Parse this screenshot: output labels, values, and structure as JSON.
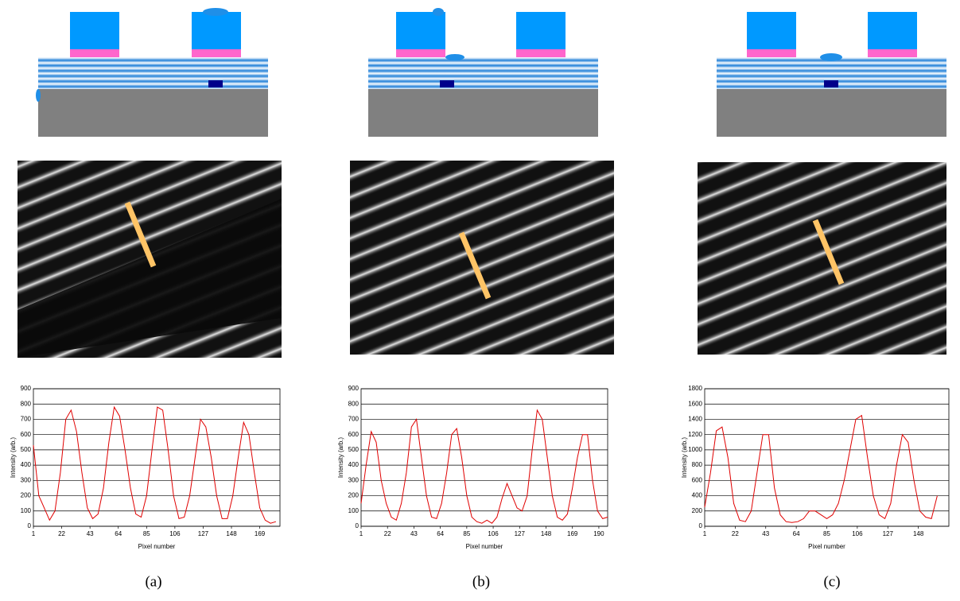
{
  "chart_data": [
    {
      "type": "line",
      "caption": "(a)",
      "xlabel": "Pixel number",
      "ylabel": "Intensity (arb.)",
      "xlim": [
        1,
        184
      ],
      "ylim": [
        0,
        900
      ],
      "xticks": [
        1,
        22,
        43,
        64,
        85,
        106,
        127,
        148,
        169
      ],
      "yticks": [
        0,
        100,
        200,
        300,
        400,
        500,
        600,
        700,
        800,
        900
      ],
      "grid": true,
      "series": [
        {
          "color": "#e00000",
          "x": [
            1,
            5,
            9,
            13,
            17,
            21,
            25,
            29,
            33,
            37,
            41,
            45,
            49,
            53,
            57,
            61,
            65,
            69,
            73,
            77,
            81,
            85,
            89,
            93,
            97,
            101,
            105,
            109,
            113,
            117,
            121,
            125,
            129,
            133,
            137,
            141,
            145,
            149,
            153,
            157,
            161,
            165,
            169,
            173,
            177,
            181
          ],
          "values": [
            530,
            200,
            120,
            40,
            100,
            350,
            700,
            760,
            620,
            350,
            120,
            50,
            80,
            250,
            550,
            780,
            720,
            500,
            250,
            80,
            60,
            200,
            500,
            780,
            760,
            500,
            200,
            50,
            60,
            200,
            450,
            700,
            650,
            450,
            200,
            50,
            50,
            200,
            450,
            680,
            600,
            350,
            120,
            40,
            20,
            30
          ]
        }
      ]
    },
    {
      "type": "line",
      "caption": "(b)",
      "xlabel": "Pixel number",
      "ylabel": "Intensity (arb.)",
      "xlim": [
        1,
        197
      ],
      "ylim": [
        0,
        900
      ],
      "xticks": [
        1,
        22,
        43,
        64,
        85,
        106,
        127,
        148,
        169,
        190
      ],
      "yticks": [
        0,
        100,
        200,
        300,
        400,
        500,
        600,
        700,
        800,
        900
      ],
      "grid": true,
      "series": [
        {
          "color": "#e00000",
          "x": [
            1,
            5,
            9,
            13,
            17,
            21,
            25,
            29,
            33,
            37,
            41,
            45,
            49,
            53,
            57,
            61,
            65,
            69,
            73,
            77,
            81,
            85,
            89,
            93,
            97,
            101,
            105,
            109,
            113,
            117,
            121,
            125,
            129,
            133,
            137,
            141,
            145,
            149,
            153,
            157,
            161,
            165,
            169,
            173,
            177,
            181,
            185,
            189,
            193,
            197
          ],
          "values": [
            150,
            400,
            620,
            550,
            300,
            150,
            60,
            40,
            150,
            350,
            650,
            700,
            450,
            200,
            60,
            50,
            150,
            350,
            600,
            640,
            450,
            200,
            60,
            30,
            20,
            40,
            20,
            60,
            180,
            280,
            200,
            120,
            100,
            200,
            500,
            760,
            700,
            450,
            200,
            60,
            40,
            80,
            250,
            450,
            600,
            600,
            300,
            100,
            50,
            60
          ]
        }
      ]
    },
    {
      "type": "line",
      "caption": "(c)",
      "xlabel": "Pixel number",
      "ylabel": "Intensity (arb.)",
      "xlim": [
        1,
        169
      ],
      "ylim": [
        0,
        1800
      ],
      "xticks": [
        1,
        22,
        43,
        64,
        85,
        106,
        127,
        148
      ],
      "yticks": [
        0,
        200,
        400,
        600,
        800,
        1000,
        1200,
        1400,
        1600,
        1800
      ],
      "grid": true,
      "series": [
        {
          "color": "#e00000",
          "x": [
            1,
            5,
            9,
            13,
            17,
            21,
            25,
            29,
            33,
            37,
            41,
            45,
            49,
            53,
            57,
            61,
            65,
            69,
            73,
            77,
            81,
            85,
            89,
            93,
            97,
            101,
            105,
            109,
            113,
            117,
            121,
            125,
            129,
            133,
            137,
            141,
            145,
            149,
            153,
            157,
            161
          ],
          "values": [
            250,
            700,
            1250,
            1300,
            900,
            300,
            80,
            60,
            200,
            700,
            1200,
            1200,
            500,
            150,
            60,
            50,
            60,
            100,
            200,
            200,
            150,
            100,
            150,
            300,
            600,
            1000,
            1400,
            1450,
            900,
            400,
            150,
            100,
            300,
            800,
            1200,
            1100,
            600,
            200,
            120,
            100,
            400
          ]
        }
      ]
    }
  ]
}
